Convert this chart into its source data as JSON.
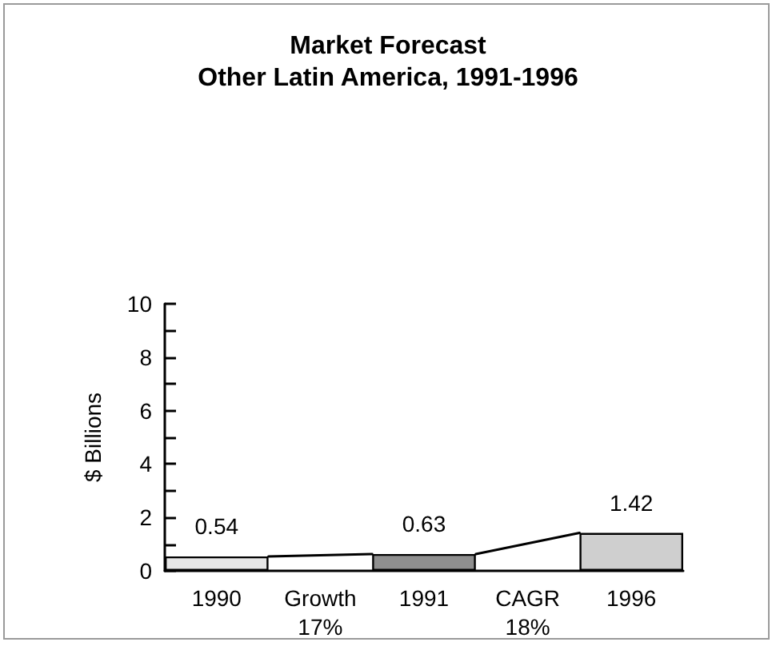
{
  "chart_data": {
    "type": "bar",
    "title": "Market Forecast\nOther Latin America, 1991-1996",
    "ylabel": "$ Billions",
    "categories": [
      "1990",
      "Growth\n17%",
      "1991",
      "CAGR\n18%",
      "1996"
    ],
    "values": [
      0.54,
      null,
      0.63,
      null,
      1.42
    ],
    "colors": [
      "#e6e6e6",
      null,
      "#8f8f8f",
      null,
      "#cfcfcf"
    ],
    "ylim": [
      0,
      10
    ],
    "yticks": [
      0,
      {
        "value": 1,
        "label": null
      },
      2,
      {
        "value": 3,
        "label": null
      },
      4,
      {
        "value": 5,
        "label": null
      },
      6,
      {
        "value": 7,
        "label": null
      },
      8,
      {
        "value": 9,
        "label": null
      },
      10
    ],
    "data_labels": true,
    "grid": false
  }
}
